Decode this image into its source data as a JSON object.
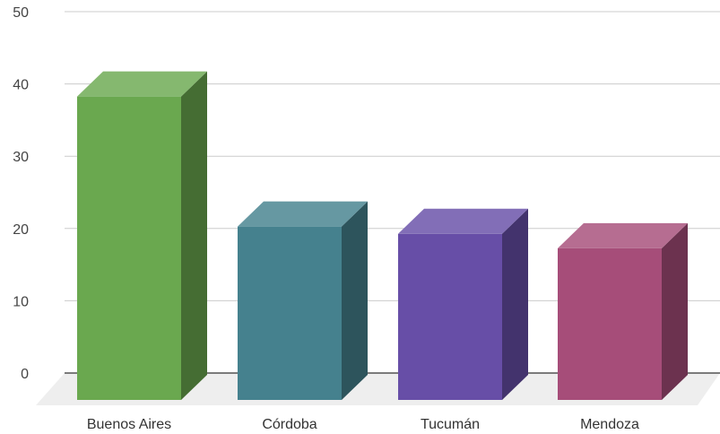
{
  "chart_data": {
    "type": "bar",
    "style": "3d",
    "categories": [
      "Buenos Aires",
      "Córdoba",
      "Tucumán",
      "Mendoza"
    ],
    "values": [
      40,
      22,
      21,
      19
    ],
    "colors": [
      "#6aa84f",
      "#45818e",
      "#674ea7",
      "#a64d79"
    ],
    "ylim": [
      0,
      50
    ],
    "yticks": [
      "0",
      "10",
      "20",
      "30",
      "40",
      "50"
    ],
    "grid": true,
    "legend": "none",
    "title": "",
    "xlabel": "",
    "ylabel": ""
  }
}
